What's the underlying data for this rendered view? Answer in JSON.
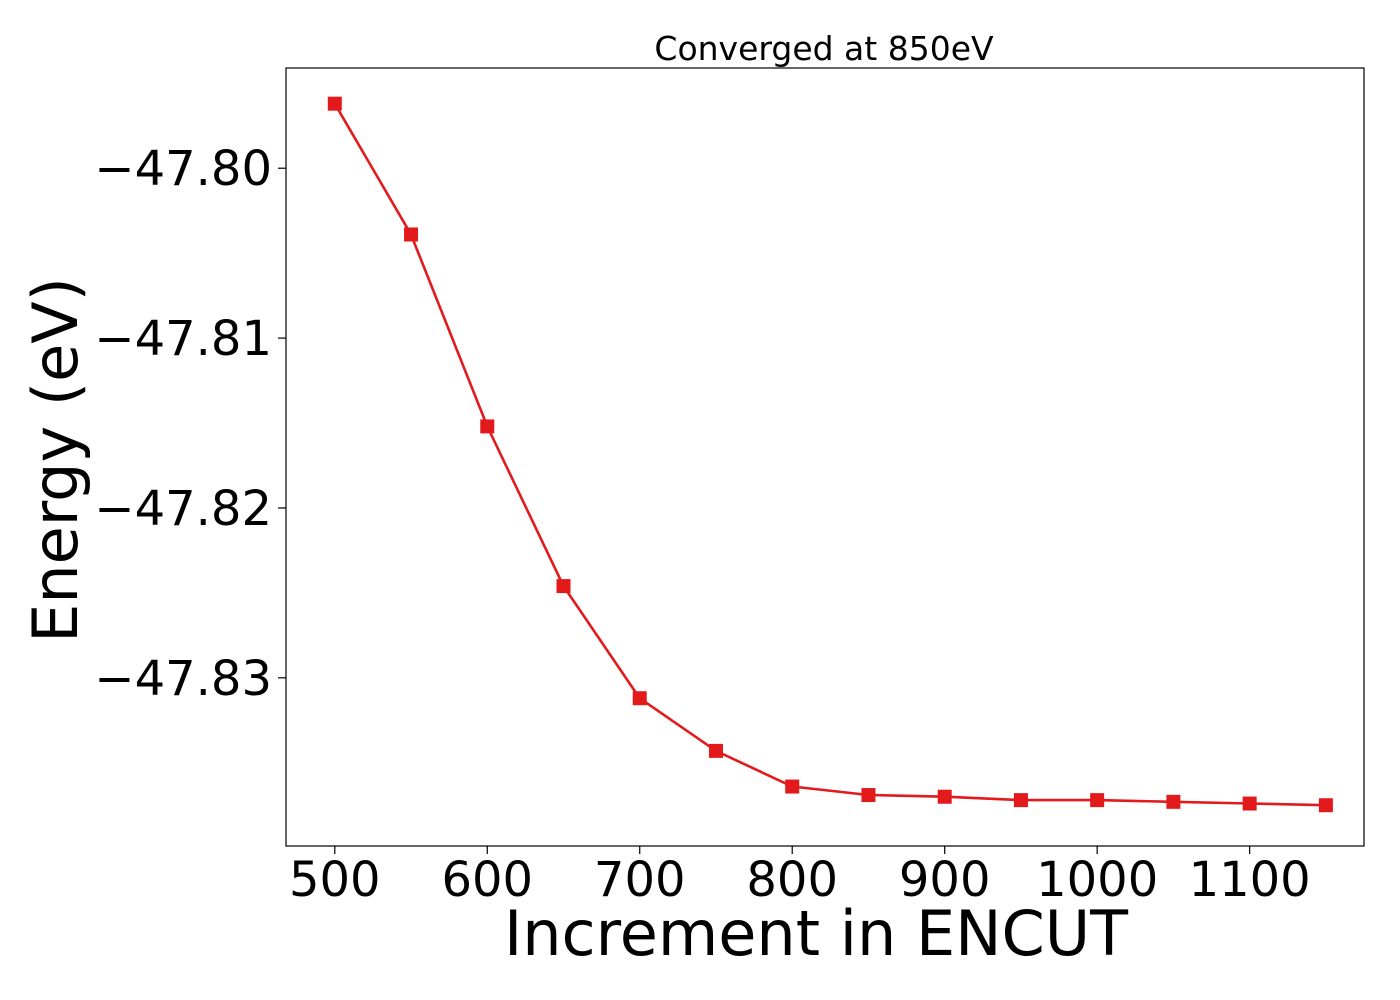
{
  "chart_data": {
    "type": "line",
    "title": "Converged at 850eV",
    "xlabel": "Increment in ENCUT",
    "ylabel": "Energy (eV)",
    "xlim": [
      468,
      1175
    ],
    "ylim": [
      -47.8399,
      -47.7941
    ],
    "xticks": [
      500,
      600,
      700,
      800,
      900,
      1000,
      1100
    ],
    "xtick_labels": [
      "500",
      "600",
      "700",
      "800",
      "900",
      "1000",
      "1100"
    ],
    "yticks": [
      -47.8,
      -47.81,
      -47.82,
      -47.83
    ],
    "ytick_labels": [
      "−47.80",
      "−47.81",
      "−47.82",
      "−47.83"
    ],
    "grid": false,
    "series": [
      {
        "color": "#e31a1c",
        "marker": "square",
        "x": [
          500,
          550,
          600,
          650,
          700,
          750,
          800,
          850,
          900,
          950,
          1000,
          1050,
          1100,
          1150
        ],
        "y": [
          -47.7962,
          -47.8039,
          -47.8152,
          -47.8246,
          -47.8312,
          -47.8343,
          -47.8364,
          -47.8369,
          -47.837,
          -47.8372,
          -47.8372,
          -47.8373,
          -47.8374,
          -47.8375
        ]
      }
    ]
  }
}
